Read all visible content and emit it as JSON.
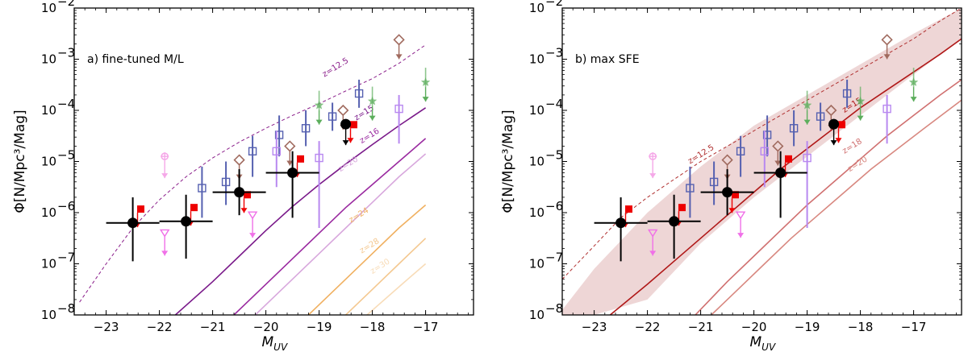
{
  "chart_data": [
    {
      "type": "scatter",
      "panel_label": "a) fine-tuned M/L",
      "xlabel": "M_UV",
      "ylabel": "Φ[N/Mpc³/Mag]",
      "xlim": [
        -23.6,
        -16.1
      ],
      "ylim_log10": [
        -8,
        -2
      ],
      "x_ticks": [
        -23,
        -22,
        -21,
        -20,
        -19,
        -18,
        -17
      ],
      "x_tick_labels": [
        "−23",
        "−22",
        "−21",
        "−20",
        "−19",
        "−18",
        "−17"
      ],
      "y_ticks_log10": [
        -8,
        -7,
        -6,
        -5,
        -4,
        -3,
        -2
      ],
      "y_tick_labels": [
        "10",
        "10",
        "10",
        "10",
        "10",
        "10",
        "10"
      ],
      "y_tick_exponents": [
        "−8",
        "−7",
        "−6",
        "−5",
        "−4",
        "−3",
        "−2"
      ],
      "curves": [
        {
          "label": "z=12.5",
          "color": "#8b1f8b",
          "style": "dashed",
          "x": [
            -23.5,
            -23,
            -22.5,
            -22,
            -21.5,
            -21,
            -20.5,
            -20,
            -19.5,
            -19,
            -18.5,
            -18,
            -17.5,
            -17
          ],
          "y_log10": [
            -7.75,
            -7.0,
            -6.3,
            -5.75,
            -5.3,
            -4.93,
            -4.62,
            -4.35,
            -4.1,
            -3.87,
            -3.62,
            -3.38,
            -3.08,
            -2.72
          ]
        },
        {
          "label": "",
          "color": "#7a1a8a",
          "style": "solid",
          "x": [
            -21.7,
            -21,
            -20.5,
            -20,
            -19.5,
            -19,
            -18.5,
            -18,
            -17.5,
            -17
          ],
          "y_log10": [
            -8,
            -7.35,
            -6.85,
            -6.35,
            -5.88,
            -5.45,
            -5.05,
            -4.67,
            -4.3,
            -3.95
          ]
        },
        {
          "label": "z=16",
          "color": "#9a2aa0",
          "style": "solid",
          "x": [
            -20.6,
            -20,
            -19.5,
            -19,
            -18.5,
            -18,
            -17.5,
            -17
          ],
          "y_log10": [
            -8,
            -7.4,
            -6.9,
            -6.4,
            -5.9,
            -5.45,
            -5.0,
            -4.55
          ]
        },
        {
          "label": "z=20",
          "color": "#d8a8dd",
          "style": "solid",
          "x": [
            -20.2,
            -19.5,
            -19,
            -18.5,
            -18,
            -17.5,
            -17
          ],
          "y_log10": [
            -8,
            -7.3,
            -6.8,
            -6.3,
            -5.8,
            -5.3,
            -4.85
          ]
        },
        {
          "label": "z=24",
          "color": "#f0b060",
          "style": "solid",
          "x": [
            -19.2,
            -18.5,
            -18,
            -17.5,
            -17
          ],
          "y_log10": [
            -8,
            -7.3,
            -6.8,
            -6.3,
            -5.85
          ]
        },
        {
          "label": "z=28",
          "color": "#f4c890",
          "style": "solid",
          "x": [
            -18.5,
            -18,
            -17.5,
            -17
          ],
          "y_log10": [
            -8,
            -7.5,
            -7.0,
            -6.5
          ]
        },
        {
          "label": "z=30",
          "color": "#f8dcb8",
          "style": "solid",
          "x": [
            -18.1,
            -17.5,
            -17
          ],
          "y_log10": [
            -8,
            -7.45,
            -7.0
          ]
        }
      ],
      "curve_labels": [
        {
          "text": "z=12.5",
          "color": "#8b1f8b",
          "x": -18.9,
          "y_log10": -3.35
        },
        {
          "text": "z=15",
          "color": "#7a1a8a",
          "x": -18.3,
          "y_log10": -4.2
        },
        {
          "text": "z=16",
          "color": "#9a2aa0",
          "x": -18.2,
          "y_log10": -4.65
        },
        {
          "text": "z=20",
          "color": "#d8a8dd",
          "x": -18.6,
          "y_log10": -5.2
        },
        {
          "text": "z=24",
          "color": "#f0b060",
          "x": -18.4,
          "y_log10": -6.2
        },
        {
          "text": "z=28",
          "color": "#f4c890",
          "x": -18.2,
          "y_log10": -6.8
        },
        {
          "text": "z=30",
          "color": "#f8dcb8",
          "x": -18.0,
          "y_log10": -7.2
        }
      ]
    },
    {
      "type": "scatter",
      "panel_label": "b) max SFE",
      "xlabel": "M_UV",
      "ylabel": "Φ[N/Mpc³/Mag]",
      "xlim": [
        -23.6,
        -16.1
      ],
      "ylim_log10": [
        -8,
        -2
      ],
      "x_ticks": [
        -23,
        -22,
        -21,
        -20,
        -19,
        -18,
        -17
      ],
      "x_tick_labels": [
        "−23",
        "−22",
        "−21",
        "−20",
        "−19",
        "−18",
        "−17"
      ],
      "y_ticks_log10": [
        -8,
        -7,
        -6,
        -5,
        -4,
        -3,
        -2
      ],
      "y_tick_labels": [
        "10",
        "10",
        "10",
        "10",
        "10",
        "10",
        "10"
      ],
      "y_tick_exponents": [
        "−8",
        "−7",
        "−6",
        "−5",
        "−4",
        "−3",
        "−2"
      ],
      "band": {
        "color": "#e8c8c8",
        "x": [
          -23.6,
          -23,
          -22,
          -21,
          -20,
          -19,
          -18,
          -17,
          -16.1
        ],
        "upper_log10": [
          -7.9,
          -7.1,
          -6.0,
          -5.1,
          -4.3,
          -3.7,
          -3.1,
          -2.5,
          -2.0
        ],
        "lower_log10": [
          -8,
          -8,
          -7.7,
          -6.6,
          -5.7,
          -4.9,
          -4.1,
          -3.3,
          -2.6
        ]
      },
      "curves": [
        {
          "label": "z=12.5",
          "color": "#b03030",
          "style": "dashed",
          "x": [
            -23.6,
            -23,
            -22.5,
            -22,
            -21.5,
            -21,
            -20.5,
            -20,
            -19.5,
            -19,
            -18.5,
            -18,
            -17.5,
            -17,
            -16.5,
            -16.1
          ],
          "y_log10": [
            -7.3,
            -6.65,
            -6.1,
            -5.7,
            -5.35,
            -5.0,
            -4.7,
            -4.4,
            -4.1,
            -3.8,
            -3.5,
            -3.2,
            -2.9,
            -2.6,
            -2.25,
            -2.0
          ]
        },
        {
          "label": "z=15",
          "color": "#b01818",
          "style": "solid",
          "x": [
            -22.7,
            -22,
            -21.5,
            -21,
            -20.5,
            -20,
            -19.5,
            -19,
            -18.5,
            -18,
            -17.5,
            -17,
            -16.5,
            -16.1
          ],
          "y_log10": [
            -8,
            -7.4,
            -6.95,
            -6.5,
            -6.05,
            -5.6,
            -5.15,
            -4.75,
            -4.35,
            -3.95,
            -3.6,
            -3.25,
            -2.9,
            -2.6
          ]
        },
        {
          "label": "z=18",
          "color": "#d07070",
          "style": "solid",
          "x": [
            -21.1,
            -20.5,
            -20,
            -19.5,
            -19,
            -18.5,
            -18,
            -17.5,
            -17,
            -16.5,
            -16.1
          ],
          "y_log10": [
            -8,
            -7.35,
            -6.85,
            -6.35,
            -5.85,
            -5.4,
            -4.95,
            -4.5,
            -4.1,
            -3.7,
            -3.4
          ]
        },
        {
          "label": "z=20",
          "color": "#d88880",
          "style": "solid",
          "x": [
            -20.8,
            -20.3,
            -19.8,
            -19.3,
            -18.8,
            -18.3,
            -17.8,
            -17.3,
            -16.8,
            -16.1
          ],
          "y_log10": [
            -8,
            -7.5,
            -7.0,
            -6.5,
            -6.05,
            -5.6,
            -5.15,
            -4.75,
            -4.35,
            -3.8
          ]
        }
      ],
      "curve_labels": [
        {
          "text": "z=12.5",
          "color": "#b03030",
          "x": -21.2,
          "y_log10": -5.05
        },
        {
          "text": "z=15",
          "color": "#b01818",
          "x": -18.3,
          "y_log10": -4.05
        },
        {
          "text": "z=18",
          "color": "#d07070",
          "x": -18.3,
          "y_log10": -4.85
        },
        {
          "text": "z=20",
          "color": "#d88880",
          "x": -18.2,
          "y_log10": -5.2
        }
      ]
    }
  ],
  "markers": {
    "black_points": [
      {
        "x": -22.5,
        "y_log10": -6.2,
        "xerr": 0.5,
        "y_lo_log10": -6.95,
        "y_hi_log10": -5.7
      },
      {
        "x": -21.5,
        "y_log10": -6.17,
        "xerr": 0.5,
        "y_lo_log10": -6.9,
        "y_hi_log10": -5.65
      },
      {
        "x": -20.5,
        "y_log10": -5.6,
        "xerr": 0.5,
        "y_lo_log10": -6.05,
        "y_hi_log10": -5.15
      },
      {
        "x": -19.5,
        "y_log10": -5.22,
        "xerr": 0.5,
        "y_lo_log10": -6.1,
        "y_hi_log10": -4.8
      },
      {
        "x": -18.5,
        "y_log10": -4.27,
        "xerr": 0,
        "y_lo_log10": -4.9,
        "y_hi_log10": -4.27
      }
    ],
    "red_squares": [
      {
        "x": -22.35,
        "y_log10": -5.93
      },
      {
        "x": -21.35,
        "y_log10": -5.9
      },
      {
        "x": -20.35,
        "y_log10": -5.65
      },
      {
        "x": -19.35,
        "y_log10": -4.95
      },
      {
        "x": -18.35,
        "y_log10": -4.28
      }
    ],
    "blue_open_squares": [
      {
        "x": -21.2,
        "y_log10": -5.52,
        "y_lo_log10": -6.1,
        "y_hi_log10": -5.1
      },
      {
        "x": -20.75,
        "y_log10": -5.4,
        "y_lo_log10": -5.85,
        "y_hi_log10": -5.0
      },
      {
        "x": -20.25,
        "y_log10": -4.8,
        "y_lo_log10": -5.3,
        "y_hi_log10": -4.5
      },
      {
        "x": -19.75,
        "y_log10": -4.48,
        "y_lo_log10": -4.9,
        "y_hi_log10": -4.1
      },
      {
        "x": -19.25,
        "y_log10": -4.35,
        "y_lo_log10": -4.7,
        "y_hi_log10": -4.0
      },
      {
        "x": -18.75,
        "y_log10": -4.12,
        "y_lo_log10": -4.4,
        "y_hi_log10": -3.85
      },
      {
        "x": -18.25,
        "y_log10": -3.67,
        "y_lo_log10": -3.95,
        "y_hi_log10": -3.4
      }
    ],
    "violet_open_squares": [
      {
        "x": -19.8,
        "y_log10": -4.8,
        "y_lo_log10": -5.5,
        "y_hi_log10": -4.4
      },
      {
        "x": -19.0,
        "y_log10": -4.93,
        "y_lo_log10": -6.3,
        "y_hi_log10": -4.6
      },
      {
        "x": -17.5,
        "y_log10": -3.97,
        "y_lo_log10": -4.65,
        "y_hi_log10": -3.7
      }
    ],
    "pink_down_triangles": [
      {
        "x": -21.9,
        "y_log10": -6.4
      },
      {
        "x": -20.25,
        "y_log10": -6.05
      }
    ],
    "pink_crosses": [
      {
        "x": -21.9,
        "y_log10": -4.9
      }
    ],
    "brown_diamonds": [
      {
        "x": -20.5,
        "y_log10": -4.97
      },
      {
        "x": -19.55,
        "y_log10": -4.7
      },
      {
        "x": -18.55,
        "y_log10": -4.0
      },
      {
        "x": -17.5,
        "y_log10": -2.62
      }
    ],
    "green_stars": [
      {
        "x": -19.0,
        "y_log10": -3.9
      },
      {
        "x": -18.0,
        "y_log10": -3.82
      },
      {
        "x": -17.0,
        "y_log10": -3.45
      }
    ]
  },
  "colors": {
    "black": "#000000",
    "red": "#ee0000",
    "blue": "#5560b0",
    "violet": "#b888f0",
    "pink": "#f070e8",
    "brown": "#a06a5e",
    "green": "#5cae5c"
  }
}
